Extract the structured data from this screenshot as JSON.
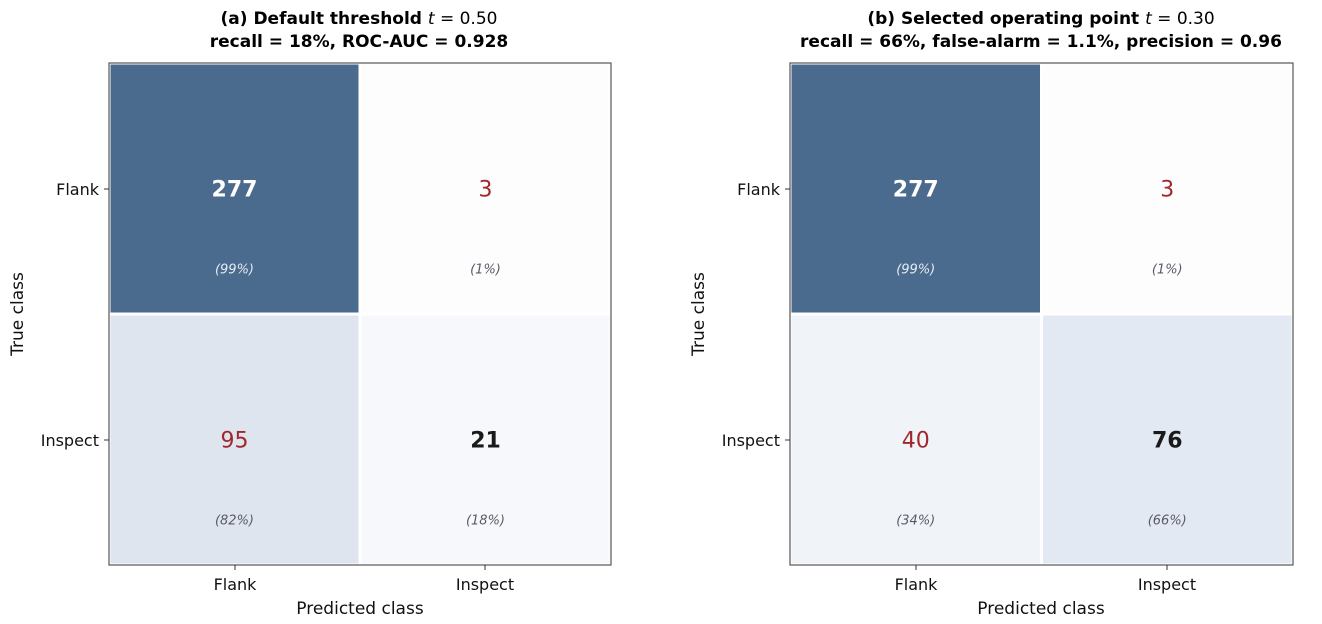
{
  "chart_data": [
    {
      "type": "heatmap",
      "title_line1_bold": "(a) Default threshold",
      "title_line1_var": "t",
      "title_line1_eq": " = 0.50",
      "title_line2": "recall = 18%, ROC-AUC = 0.928",
      "xlabel": "Predicted class",
      "ylabel": "True class",
      "x_categories": [
        "Flank",
        "Inspect"
      ],
      "y_categories": [
        "Flank",
        "Inspect"
      ],
      "matrix": [
        [
          277,
          3
        ],
        [
          95,
          21
        ]
      ],
      "percent_labels": [
        [
          "(99%)",
          "(1%)"
        ],
        [
          "(82%)",
          "(18%)"
        ]
      ],
      "row_fractions": [
        [
          0.99,
          0.01
        ],
        [
          0.82,
          0.18
        ]
      ]
    },
    {
      "type": "heatmap",
      "title_line1_bold": "(b) Selected operating point",
      "title_line1_var": "t",
      "title_line1_eq": " = 0.30",
      "title_line2": "recall = 66%, false-alarm = 1.1%, precision = 0.96",
      "xlabel": "Predicted class",
      "ylabel": "True class",
      "x_categories": [
        "Flank",
        "Inspect"
      ],
      "y_categories": [
        "Flank",
        "Inspect"
      ],
      "matrix": [
        [
          277,
          3
        ],
        [
          40,
          76
        ]
      ],
      "percent_labels": [
        [
          "(99%)",
          "(1%)"
        ],
        [
          "(34%)",
          "(66%)"
        ]
      ],
      "row_fractions": [
        [
          0.99,
          0.01
        ],
        [
          0.34,
          0.66
        ]
      ]
    }
  ],
  "colors": {
    "diagonal_strong": "#4a6a8e",
    "off_diagonal_text": "#a0282d",
    "diagonal_text_dark": "#1a1a1a",
    "diagonal_text_light": "#ffffff",
    "pct_text_dark": "#5a5a66",
    "pct_text_light": "#e6ecf3",
    "frame": "#555555"
  }
}
